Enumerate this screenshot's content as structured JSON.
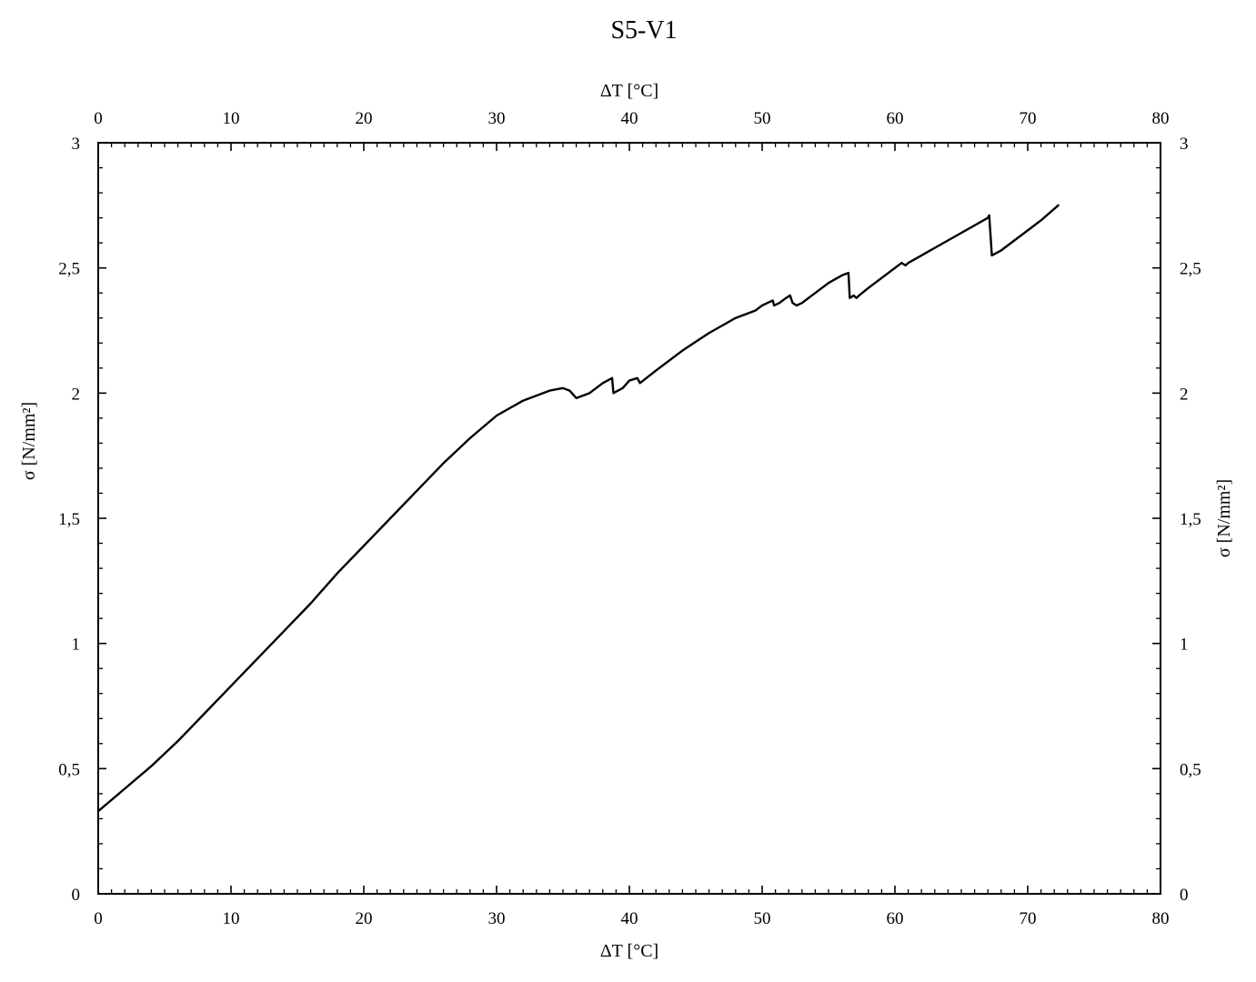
{
  "chart_data": {
    "type": "line",
    "title": "S5-V1",
    "xlabel": "ΔT [°C]",
    "xlabel_top": "ΔT [°C]",
    "ylabel": "σ [N/mm²]",
    "ylabel_right": "σ [N/mm²]",
    "xlim": [
      0,
      80
    ],
    "ylim": [
      0,
      3
    ],
    "x_ticks": [
      0,
      10,
      20,
      30,
      40,
      50,
      60,
      70,
      80
    ],
    "x_tick_labels": [
      "0",
      "10",
      "20",
      "30",
      "40",
      "50",
      "60",
      "70",
      "80"
    ],
    "y_ticks": [
      0,
      0.5,
      1,
      1.5,
      2,
      2.5,
      3
    ],
    "y_tick_labels": [
      "0",
      "0,5",
      "1",
      "1,5",
      "2",
      "2,5",
      "3"
    ],
    "x_minor_step": 1,
    "y_minor_step": 0.1,
    "grid": false,
    "legend": "none",
    "line_color": "#000000",
    "series": [
      {
        "x": [
          0,
          2,
          4,
          6,
          8,
          10,
          12,
          14,
          16,
          18,
          20,
          22,
          24,
          26,
          28,
          30,
          32,
          34,
          35,
          35.5,
          36,
          37,
          38,
          38.7,
          38.8,
          39.5,
          40,
          40.6,
          40.8,
          42,
          44,
          46,
          47,
          48,
          48.5,
          49.5,
          50,
          50.8,
          50.9,
          51.3,
          51.8,
          52.1,
          52.3,
          52.6,
          53,
          54,
          55,
          56,
          56.5,
          56.6,
          56.9,
          57.1,
          57.3,
          58,
          59,
          60,
          60.5,
          60.8,
          61,
          62,
          63,
          64,
          65,
          66,
          67,
          67.1,
          67.3,
          68,
          69,
          70,
          71,
          72.3
        ],
        "y": [
          0.33,
          0.42,
          0.51,
          0.61,
          0.72,
          0.83,
          0.94,
          1.05,
          1.16,
          1.28,
          1.39,
          1.5,
          1.61,
          1.72,
          1.82,
          1.91,
          1.97,
          2.01,
          2.02,
          2.01,
          1.98,
          2.0,
          2.04,
          2.06,
          2.0,
          2.02,
          2.05,
          2.06,
          2.04,
          2.09,
          2.17,
          2.24,
          2.27,
          2.3,
          2.31,
          2.33,
          2.35,
          2.37,
          2.35,
          2.36,
          2.38,
          2.39,
          2.36,
          2.35,
          2.36,
          2.4,
          2.44,
          2.47,
          2.48,
          2.38,
          2.39,
          2.38,
          2.39,
          2.42,
          2.46,
          2.5,
          2.52,
          2.51,
          2.52,
          2.55,
          2.58,
          2.61,
          2.64,
          2.67,
          2.7,
          2.71,
          2.55,
          2.57,
          2.61,
          2.65,
          2.69,
          2.75
        ]
      }
    ]
  }
}
